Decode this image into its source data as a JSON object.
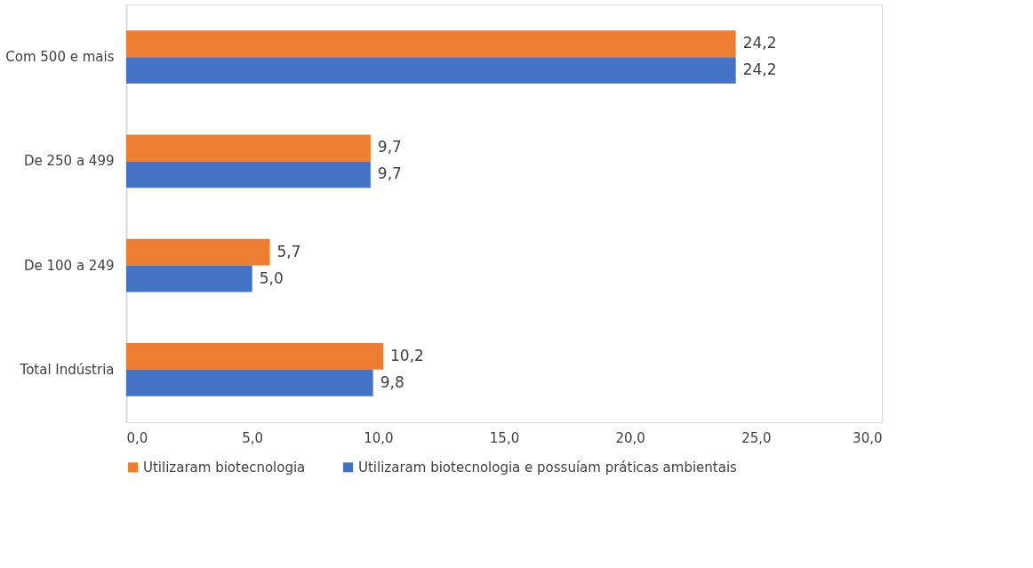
{
  "chart_data": {
    "type": "bar",
    "orientation": "horizontal",
    "categories": [
      "Com 500 e mais",
      "De  250 a 499",
      "De  100 a 249",
      "Total Indústria"
    ],
    "series": [
      {
        "name": "Utilizaram biotecnologia",
        "color": "#ed7d31",
        "values": [
          24.2,
          9.7,
          5.7,
          10.2
        ],
        "value_labels": [
          "24,2",
          "9,7",
          "5,7",
          "10,2"
        ]
      },
      {
        "name": "Utilizaram biotecnologia e possuíam práticas ambientais",
        "color": "#4472c4",
        "values": [
          24.2,
          9.7,
          5.0,
          9.8
        ],
        "value_labels": [
          "24,2",
          "9,7",
          "5,0",
          "9,8"
        ]
      }
    ],
    "xlim": [
      0,
      30
    ],
    "xticks": [
      {
        "value": 0,
        "label": "0,0"
      },
      {
        "value": 5,
        "label": "5,0"
      },
      {
        "value": 10,
        "label": "10,0"
      },
      {
        "value": 15,
        "label": "15,0"
      },
      {
        "value": 20,
        "label": "20,0"
      },
      {
        "value": 25,
        "label": "25,0"
      },
      {
        "value": 30,
        "label": "30,0"
      }
    ],
    "grid": false,
    "legend": "bottom"
  }
}
